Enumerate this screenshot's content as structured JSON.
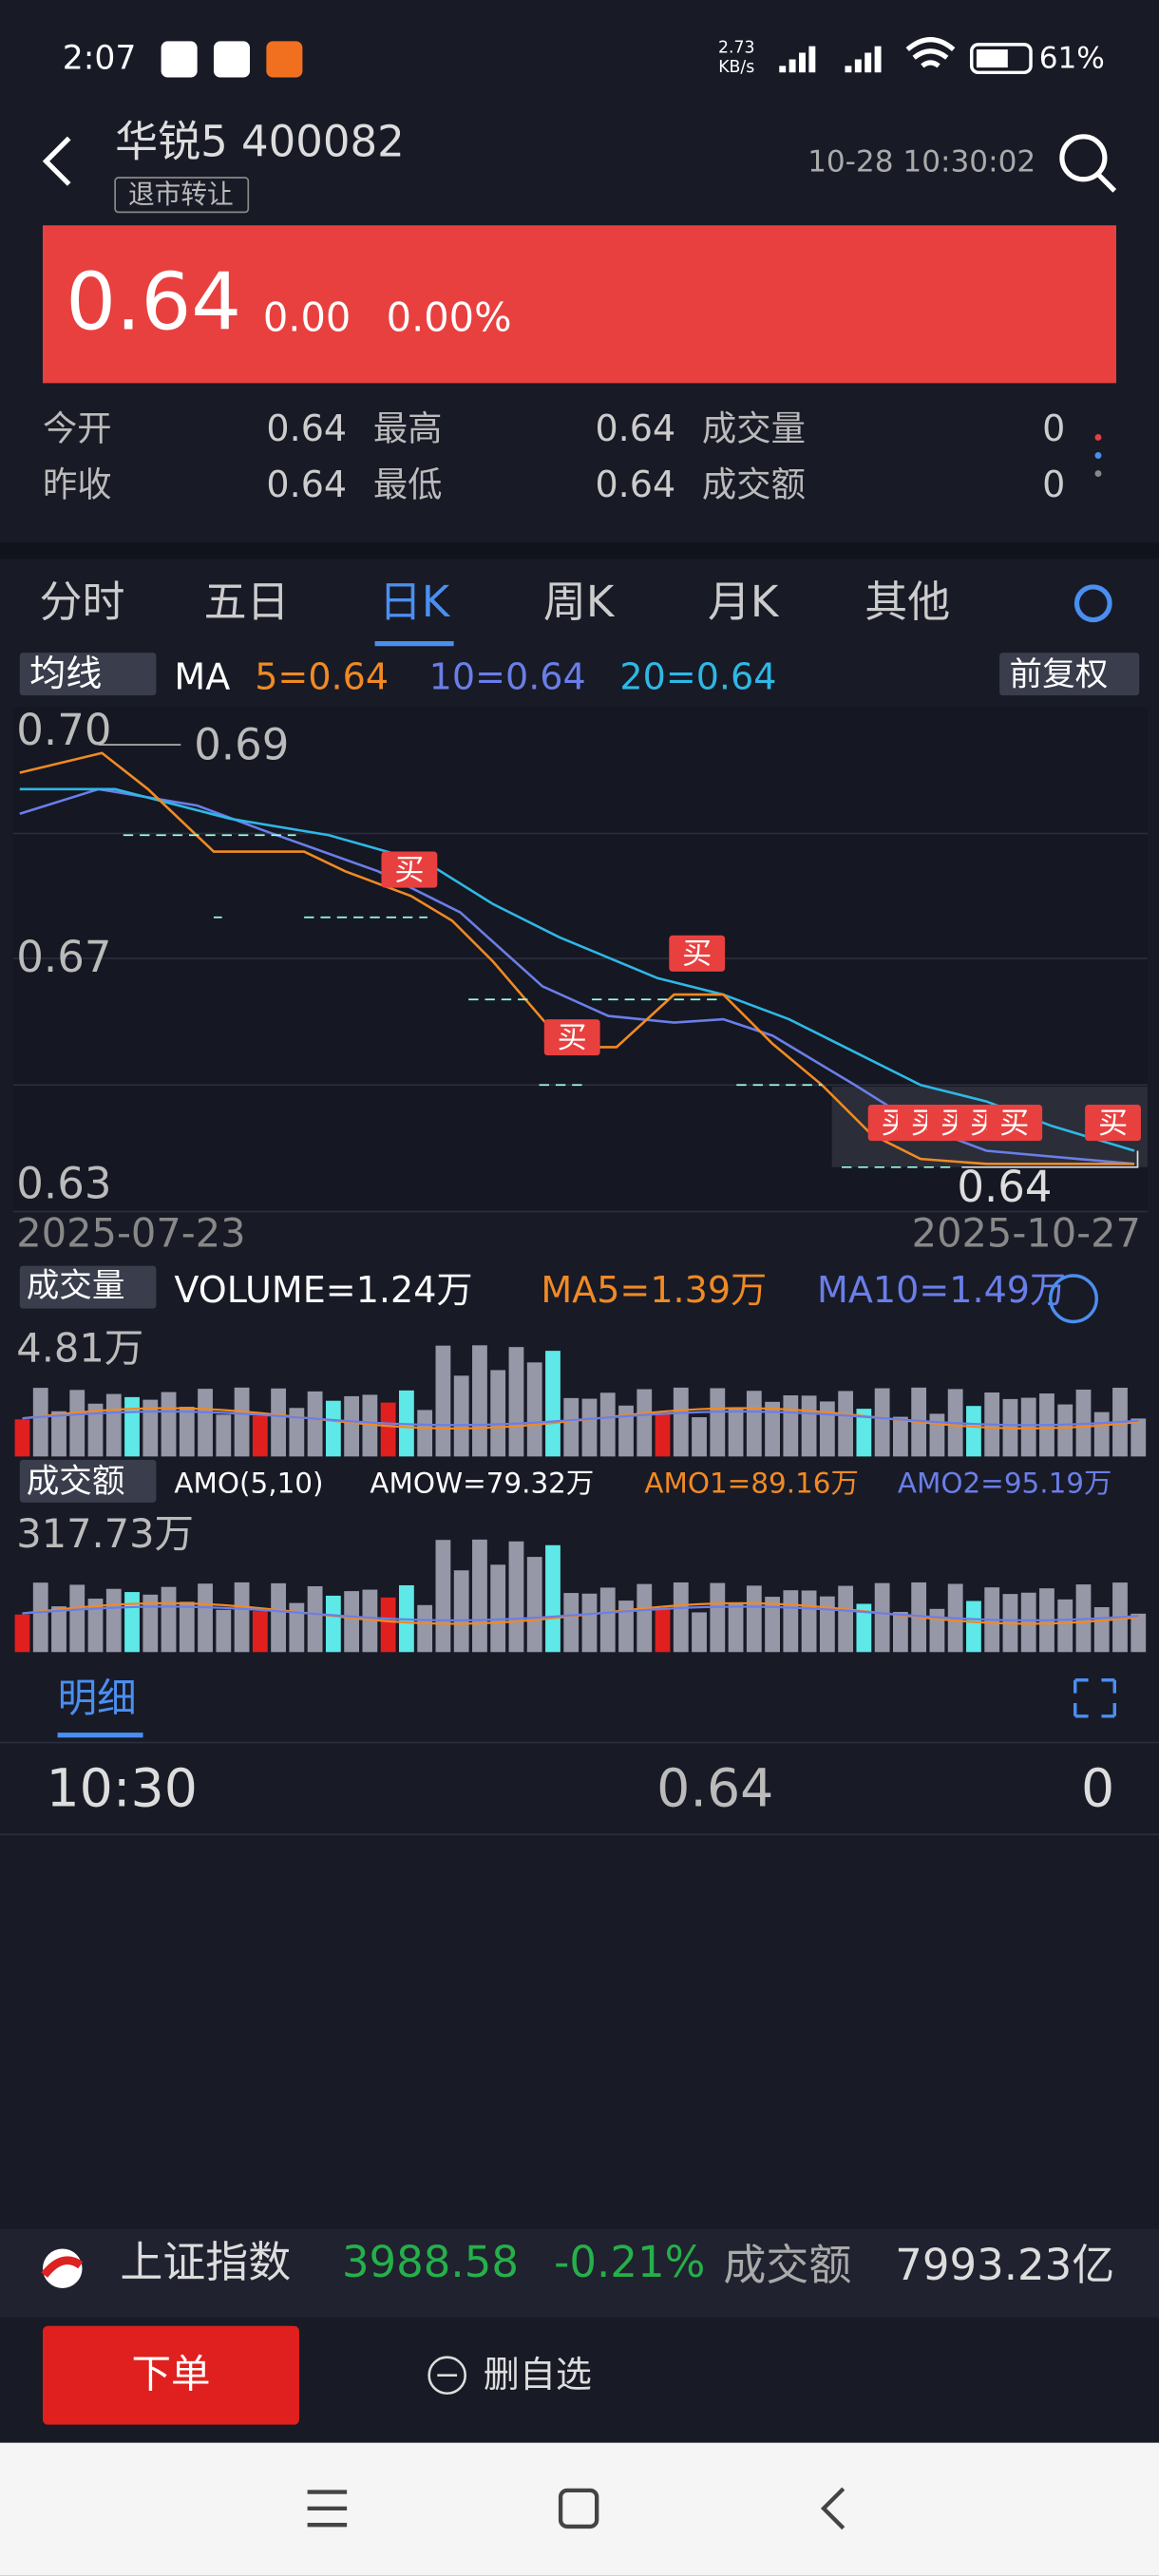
{
  "status": {
    "time": "2:07",
    "speed_value": "2.73",
    "speed_unit": "KB/s",
    "battery": "61%"
  },
  "header": {
    "name": "华锐5 400082",
    "tag": "退市转让",
    "datetime": "10-28 10:30:02"
  },
  "quote": {
    "price": "0.64",
    "change": "0.00",
    "percent": "0.00%"
  },
  "stats": [
    {
      "label": "今开",
      "value": "0.64"
    },
    {
      "label": "昨收",
      "value": "0.64"
    },
    {
      "label": "最高",
      "value": "0.64"
    },
    {
      "label": "最低",
      "value": "0.64"
    },
    {
      "label": "成交量",
      "value": "0"
    },
    {
      "label": "成交额",
      "value": "0"
    }
  ],
  "tabs": [
    "分时",
    "五日",
    "日K",
    "周K",
    "月K",
    "其他"
  ],
  "kline": {
    "indicator": "均线",
    "ma": "MA",
    "ma5": "5=0.64",
    "ma10": "10=0.64",
    "ma20": "20=0.64",
    "adjust": "前复权",
    "ylabels": [
      "0.70",
      "0.67",
      "0.63"
    ],
    "high": "0.69",
    "low": "0.64",
    "start_date": "2025-07-23",
    "end_date": "2025-10-27",
    "buy": "买"
  },
  "volume": {
    "label": "成交量",
    "volume": "VOLUME=1.24万",
    "ma5": "MA5=1.39万",
    "ma10": "MA10=1.49万",
    "max": "4.81万"
  },
  "amount": {
    "label": "成交额",
    "setting": "AMO(5,10)",
    "amow": "AMOW=79.32万",
    "amo1": "AMO1=89.16万",
    "amo2": "AMO2=95.19万",
    "max": "317.73万"
  },
  "detail": {
    "tab": "明细",
    "row": [
      "10:30",
      "0.64",
      "0"
    ]
  },
  "index": {
    "name": "上证指数",
    "value": "3988.58",
    "change": "-0.21%",
    "label": "成交额",
    "amount": "7993.23亿"
  },
  "actions": {
    "order": "下单",
    "remove": "删自选"
  }
}
